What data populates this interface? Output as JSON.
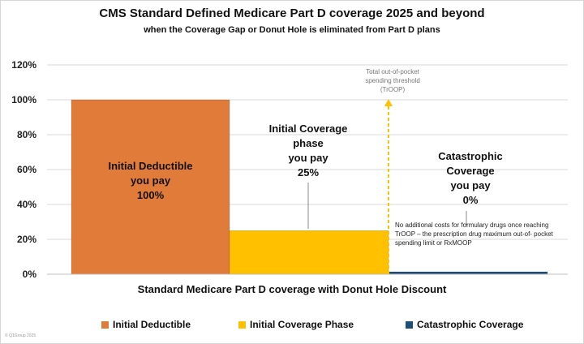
{
  "chart_data": {
    "type": "bar",
    "title": "CMS Standard Defined Medicare Part D coverage 2025 and beyond",
    "subtitle": "when the Coverage Gap or Donut Hole is eliminated from Part D plans",
    "xlabel": "Standard Medicare Part D coverage with Donut Hole Discount",
    "ylabel": "",
    "ylim": [
      0,
      120
    ],
    "y_ticks": [
      "0%",
      "20%",
      "40%",
      "60%",
      "80%",
      "100%",
      "120%"
    ],
    "grid": true,
    "legend_position": "bottom",
    "categories": [
      "Initial Deductible",
      "Initial Coverage Phase",
      "Catastrophic Coverage"
    ],
    "values": [
      100,
      25,
      0
    ],
    "colors": [
      "#E07B39",
      "#FFC000",
      "#1F4E79"
    ],
    "bar_labels": [
      "Initial Deductible\nyou pay\n100%",
      "Initial Coverage\nphase\nyou pay\n25%",
      "Catastrophic\nCoverage\nyou pay\n0%"
    ],
    "annotations": {
      "troop": "Total out-of-pocket\nspending threshold\n(TrOOP)",
      "catastrophic_note": "No additional costs for formulary drugs once reaching TrOOP – the prescription drug maximum out-of- pocket spending limit or RxMOOP"
    }
  },
  "watermark": "© Q1Group 2025"
}
